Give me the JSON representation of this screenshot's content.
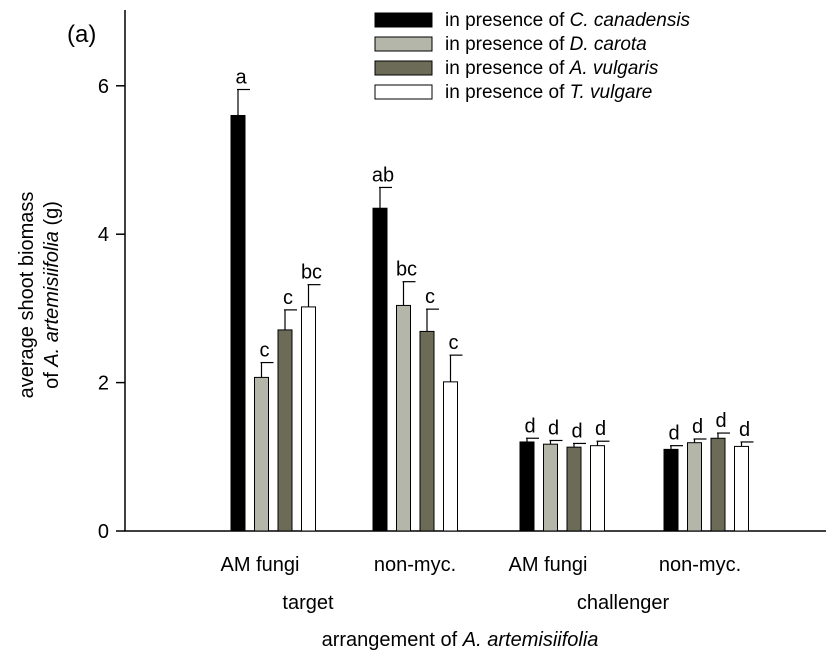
{
  "chart_data": {
    "type": "bar",
    "panel_label": "(a)",
    "ylabel_line1": "average shoot biomass",
    "ylabel_line2_prefix": "of ",
    "ylabel_line2_italic": "A. artemisiifolia",
    "ylabel_line2_suffix": " (g)",
    "xlabel_prefix": "arrangement of ",
    "xlabel_italic": "A. artemisiifolia",
    "ylim": [
      0,
      7.0
    ],
    "yticks": [
      0,
      2,
      4,
      6
    ],
    "groups": [
      "target",
      "challenger"
    ],
    "categories": [
      "AM fungi",
      "non-myc.",
      "AM fungi",
      "non-myc."
    ],
    "category_group": [
      0,
      0,
      1,
      1
    ],
    "series": [
      {
        "name_prefix": "in presence of ",
        "name_italic": "C. canadensis",
        "color": "#000000",
        "values": [
          5.6,
          4.35,
          1.2,
          1.1
        ],
        "errors": [
          0.35,
          0.28,
          0.05,
          0.05
        ],
        "letters": [
          "a",
          "ab",
          "d",
          "d"
        ]
      },
      {
        "name_prefix": "in presence of ",
        "name_italic": "D. carota",
        "color": "#b4b6aa",
        "values": [
          2.07,
          3.04,
          1.17,
          1.19
        ],
        "errors": [
          0.2,
          0.32,
          0.05,
          0.05
        ],
        "letters": [
          "c",
          "bc",
          "d",
          "d"
        ]
      },
      {
        "name_prefix": "in presence of ",
        "name_italic": "A. vulgaris",
        "color": "#6c6b58",
        "values": [
          2.71,
          2.69,
          1.13,
          1.25
        ],
        "errors": [
          0.27,
          0.3,
          0.05,
          0.07
        ],
        "letters": [
          "c",
          "c",
          "d",
          "d"
        ]
      },
      {
        "name_prefix": "in presence of ",
        "name_italic": "T. vulgare",
        "color": "#ffffff",
        "values": [
          3.02,
          2.01,
          1.15,
          1.14
        ],
        "errors": [
          0.3,
          0.36,
          0.06,
          0.06
        ],
        "letters": [
          "bc",
          "c",
          "d",
          "d"
        ]
      }
    ],
    "legend_position": "top-right",
    "grid": false
  }
}
